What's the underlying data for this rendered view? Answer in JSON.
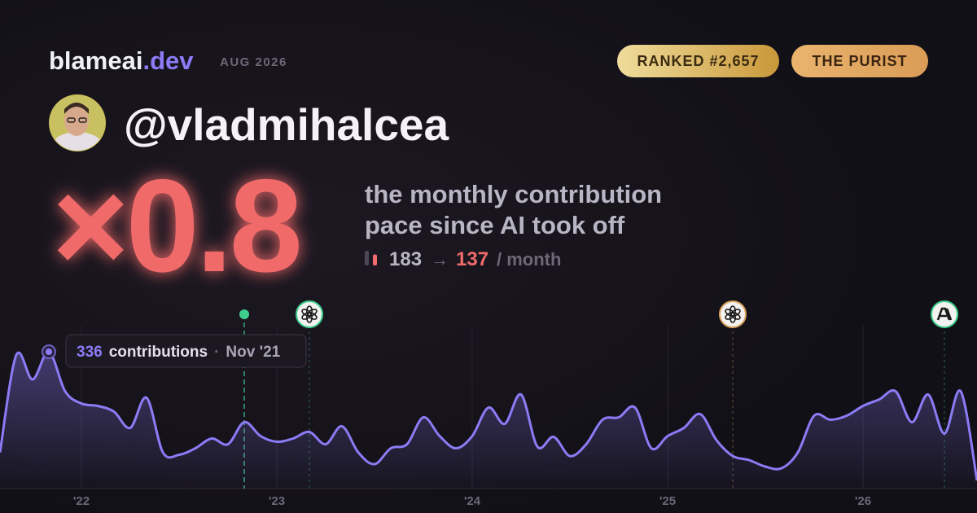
{
  "brand": {
    "name": "blameai",
    "tld": ".dev",
    "period": "AUG 2026"
  },
  "badges": [
    "RANKED #2,657",
    "THE PURIST"
  ],
  "user": {
    "handle": "@vladmihalcea"
  },
  "headline": {
    "multiplier": "×0.8",
    "description": [
      "the monthly contribution",
      "pace since AI took off"
    ]
  },
  "stats": {
    "before": 183,
    "arrow": "→",
    "after": 137,
    "unit": "/ month",
    "before_color": "#4a4757",
    "after_color": "#f06b6b"
  },
  "chart_data": {
    "type": "area",
    "color": "#8b7cf6",
    "x": [
      "2021-08",
      "2021-09",
      "2021-10",
      "2021-11",
      "2021-12",
      "2022-01",
      "2022-02",
      "2022-03",
      "2022-04",
      "2022-05",
      "2022-06",
      "2022-07",
      "2022-08",
      "2022-09",
      "2022-10",
      "2022-11",
      "2022-12",
      "2023-01",
      "2023-02",
      "2023-03",
      "2023-04",
      "2023-05",
      "2023-06",
      "2023-07",
      "2023-08",
      "2023-09",
      "2023-10",
      "2023-11",
      "2023-12",
      "2024-01",
      "2024-02",
      "2024-03",
      "2024-04",
      "2024-05",
      "2024-06",
      "2024-07",
      "2024-08",
      "2024-09",
      "2024-10",
      "2024-11",
      "2024-12",
      "2025-01",
      "2025-02",
      "2025-03",
      "2025-04",
      "2025-05",
      "2025-06",
      "2025-07",
      "2025-08",
      "2025-09",
      "2025-10",
      "2025-11",
      "2025-12",
      "2026-01",
      "2026-02",
      "2026-03",
      "2026-04",
      "2026-05",
      "2026-06",
      "2026-07",
      "2026-08"
    ],
    "values": [
      89,
      328,
      268,
      336,
      239,
      209,
      203,
      189,
      149,
      223,
      89,
      83,
      99,
      123,
      109,
      163,
      129,
      115,
      123,
      139,
      109,
      153,
      89,
      60,
      99,
      109,
      175,
      129,
      99,
      129,
      199,
      159,
      231,
      103,
      127,
      80,
      109,
      169,
      175,
      199,
      99,
      129,
      149,
      183,
      119,
      80,
      70,
      54,
      50,
      89,
      179,
      169,
      179,
      203,
      219,
      239,
      163,
      231,
      135,
      239,
      20
    ],
    "ylim": [
      0,
      400
    ],
    "xticks": [
      {
        "value": "2022-01",
        "label": "'22"
      },
      {
        "value": "2023-01",
        "label": "'23"
      },
      {
        "value": "2024-01",
        "label": "'24"
      },
      {
        "value": "2025-01",
        "label": "'25"
      },
      {
        "value": "2026-01",
        "label": "'26"
      }
    ],
    "grid": true,
    "tooltip": {
      "index": 3,
      "label": "contributions",
      "separator": "·",
      "date": "Nov '21"
    },
    "markers": [
      {
        "x": "2022-11",
        "color": "#3ecf8e",
        "shape": "dot"
      },
      {
        "x": "2023-03",
        "color": "#3ecf8e",
        "shape": "knot"
      },
      {
        "x": "2025-05",
        "color": "#d9a35a",
        "shape": "knot"
      },
      {
        "x": "2026-06",
        "color": "#3ecf8e",
        "shape": "slash"
      }
    ]
  }
}
